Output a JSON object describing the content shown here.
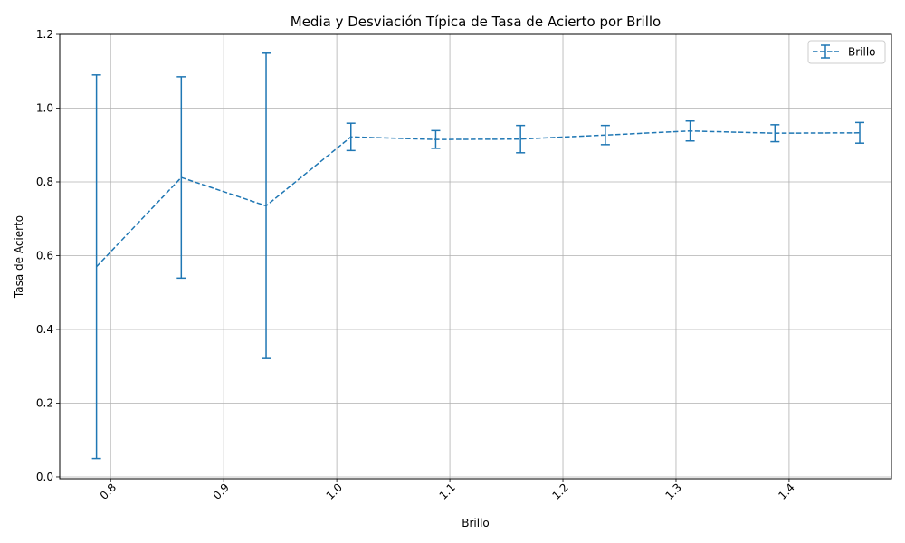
{
  "chart_data": {
    "type": "line",
    "title": "Media y Desviación Típica de Tasa de Acierto por Brillo",
    "xlabel": "Brillo",
    "ylabel": "Tasa de Acierto",
    "xlim": [
      0.755,
      1.4905
    ],
    "ylim": [
      -0.005,
      1.2
    ],
    "xticks": [
      "0.8",
      "0.9",
      "1.0",
      "1.1",
      "1.2",
      "1.3",
      "1.4"
    ],
    "yticks": [
      "0.0",
      "0.2",
      "0.4",
      "0.6",
      "0.8",
      "1.0",
      "1.2"
    ],
    "grid": true,
    "legend_position": "upper right",
    "series": [
      {
        "name": "Brillo",
        "color": "#1f77b4",
        "linestyle": "dashed",
        "x": [
          0.7875,
          0.8625,
          0.9375,
          1.0125,
          1.0875,
          1.1625,
          1.2375,
          1.3125,
          1.3875,
          1.4625
        ],
        "y": [
          0.57,
          0.812,
          0.735,
          0.922,
          0.915,
          0.916,
          0.927,
          0.938,
          0.932,
          0.933
        ],
        "err": [
          0.52,
          0.273,
          0.414,
          0.037,
          0.024,
          0.037,
          0.026,
          0.027,
          0.023,
          0.028
        ]
      }
    ]
  }
}
